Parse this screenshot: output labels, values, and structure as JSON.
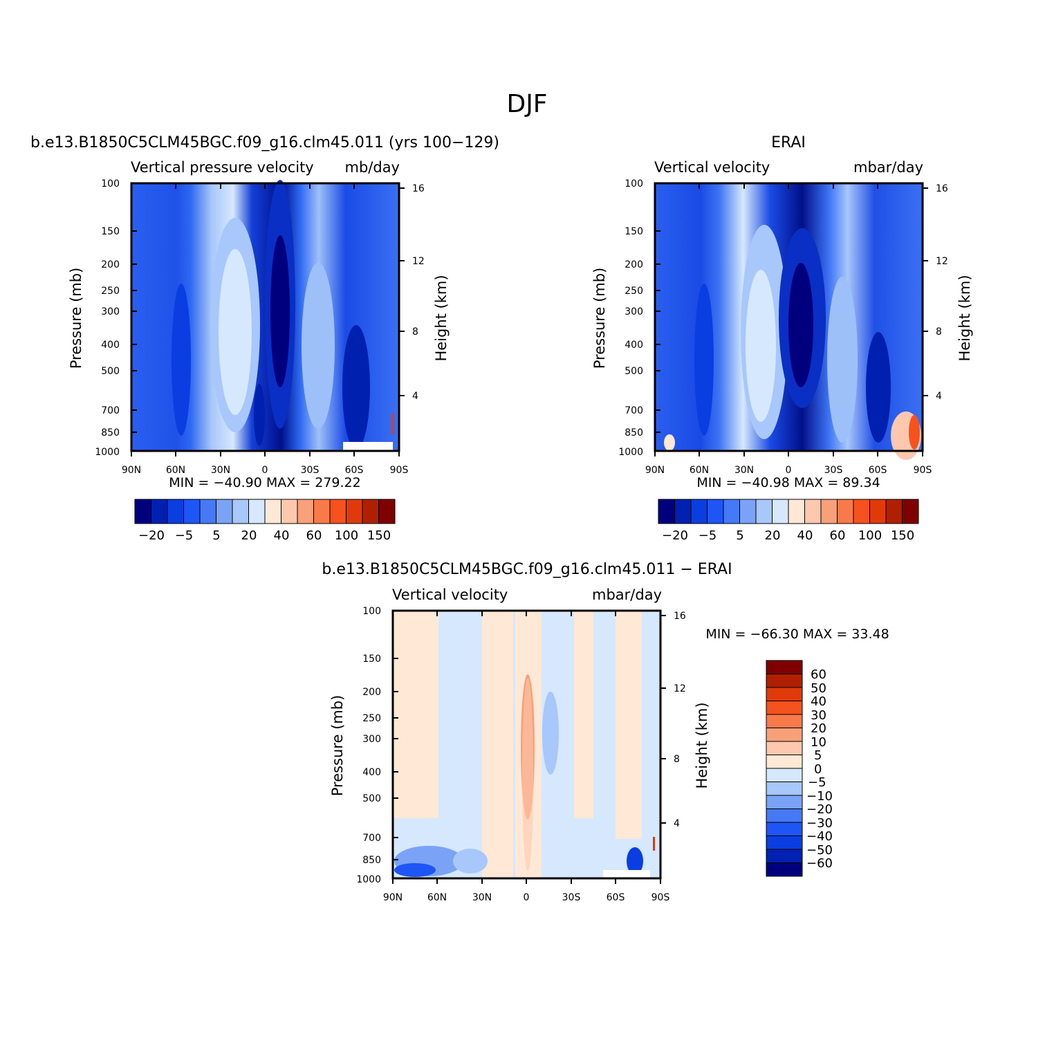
{
  "figure": {
    "suptitle": "DJF"
  },
  "panels": [
    {
      "id": "model",
      "title": "b.e13.B1850C5CLM45BGC.f09_g16.clm45.011 (yrs 100−129)",
      "left_label": "Vertical pressure velocity",
      "right_label": "mb/day",
      "min_max": "MIN = −40.90   MAX = 279.22",
      "colorbar_labels": [
        "−20",
        "−5",
        "5",
        "20",
        "40",
        "60",
        "100",
        "150"
      ]
    },
    {
      "id": "obs",
      "title": "ERAI",
      "left_label": "Vertical velocity",
      "right_label": "mbar/day",
      "min_max": "MIN = −40.98   MAX =  89.34",
      "colorbar_labels": [
        "−20",
        "−5",
        "5",
        "20",
        "40",
        "60",
        "100",
        "150"
      ]
    },
    {
      "id": "diff",
      "title": "b.e13.B1850C5CLM45BGC.f09_g16.clm45.011 − ERAI",
      "left_label": "Vertical velocity",
      "right_label": "mbar/day",
      "min_max": "MIN = −66.30   MAX =  33.48",
      "colorbar_labels": [
        "60",
        "50",
        "40",
        "30",
        "20",
        "10",
        "5",
        "0",
        "−5",
        "−10",
        "−20",
        "−30",
        "−40",
        "−50",
        "−60"
      ]
    }
  ],
  "axes": {
    "ylabel": "Pressure (mb)",
    "y2label": "Height (km)",
    "pressure_ticks": [
      "100",
      "150",
      "200",
      "250",
      "300",
      "400",
      "500",
      "700",
      "850",
      "1000"
    ],
    "height_ticks": [
      "16",
      "12",
      "8",
      "4"
    ],
    "lat_ticks": [
      "90N",
      "60N",
      "30N",
      "0",
      "30S",
      "60S",
      "90S"
    ]
  },
  "colors": {
    "absolute_scale": [
      "#00007f",
      "#0020b0",
      "#0a3ee0",
      "#1e55f5",
      "#4579f5",
      "#7aa3f7",
      "#a8c7fa",
      "#d6e8fd",
      "#ffe8d6",
      "#fdc8ae",
      "#f8a07a",
      "#f87a4a",
      "#f5521e",
      "#e03a0a",
      "#b02000",
      "#7f0000"
    ],
    "diff_scale": [
      "#7f0000",
      "#b02000",
      "#e03a0a",
      "#f5521e",
      "#f87a4a",
      "#f8a07a",
      "#fdc8ae",
      "#ffe8d6",
      "#d6e8fd",
      "#a8c7fa",
      "#7aa3f7",
      "#4579f5",
      "#1e55f5",
      "#0a3ee0",
      "#0020b0",
      "#00007f"
    ]
  },
  "chart_data": [
    {
      "type": "heatmap",
      "title": "b.e13.B1850C5CLM45BGC.f09_g16.clm45.011 (yrs 100−129)",
      "variable": "Vertical pressure velocity",
      "units": "mb/day",
      "x": [
        "90N",
        "60N",
        "30N",
        "0",
        "30S",
        "60S",
        "90S"
      ],
      "y_pressure": [
        100,
        150,
        200,
        250,
        300,
        400,
        500,
        700,
        850,
        1000
      ],
      "y_height_km": [
        16,
        12,
        8,
        4
      ],
      "min": -40.9,
      "max": 279.22,
      "contour_levels": [
        -20,
        -5,
        5,
        20,
        40,
        60,
        100,
        150
      ],
      "colorbar_labels": [
        "−20",
        "−5",
        "5",
        "20",
        "40",
        "60",
        "100",
        "150"
      ]
    },
    {
      "type": "heatmap",
      "title": "ERAI",
      "variable": "Vertical velocity",
      "units": "mbar/day",
      "x": [
        "90N",
        "60N",
        "30N",
        "0",
        "30S",
        "60S",
        "90S"
      ],
      "y_pressure": [
        100,
        150,
        200,
        250,
        300,
        400,
        500,
        700,
        850,
        1000
      ],
      "y_height_km": [
        16,
        12,
        8,
        4
      ],
      "min": -40.98,
      "max": 89.34,
      "contour_levels": [
        -20,
        -5,
        5,
        20,
        40,
        60,
        100,
        150
      ],
      "colorbar_labels": [
        "−20",
        "−5",
        "5",
        "20",
        "40",
        "60",
        "100",
        "150"
      ]
    },
    {
      "type": "heatmap",
      "title": "b.e13.B1850C5CLM45BGC.f09_g16.clm45.011 − ERAI",
      "variable": "Vertical velocity",
      "units": "mbar/day",
      "x": [
        "90N",
        "60N",
        "30N",
        "0",
        "30S",
        "60S",
        "90S"
      ],
      "y_pressure": [
        100,
        150,
        200,
        250,
        300,
        400,
        500,
        700,
        850,
        1000
      ],
      "y_height_km": [
        16,
        12,
        8,
        4
      ],
      "min": -66.3,
      "max": 33.48,
      "contour_levels": [
        60,
        50,
        40,
        30,
        20,
        10,
        5,
        0,
        -5,
        -10,
        -20,
        -30,
        -40,
        -50,
        -60
      ],
      "colorbar_labels": [
        "60",
        "50",
        "40",
        "30",
        "20",
        "10",
        "5",
        "0",
        "−5",
        "−10",
        "−20",
        "−30",
        "−40",
        "−50",
        "−60"
      ]
    }
  ]
}
